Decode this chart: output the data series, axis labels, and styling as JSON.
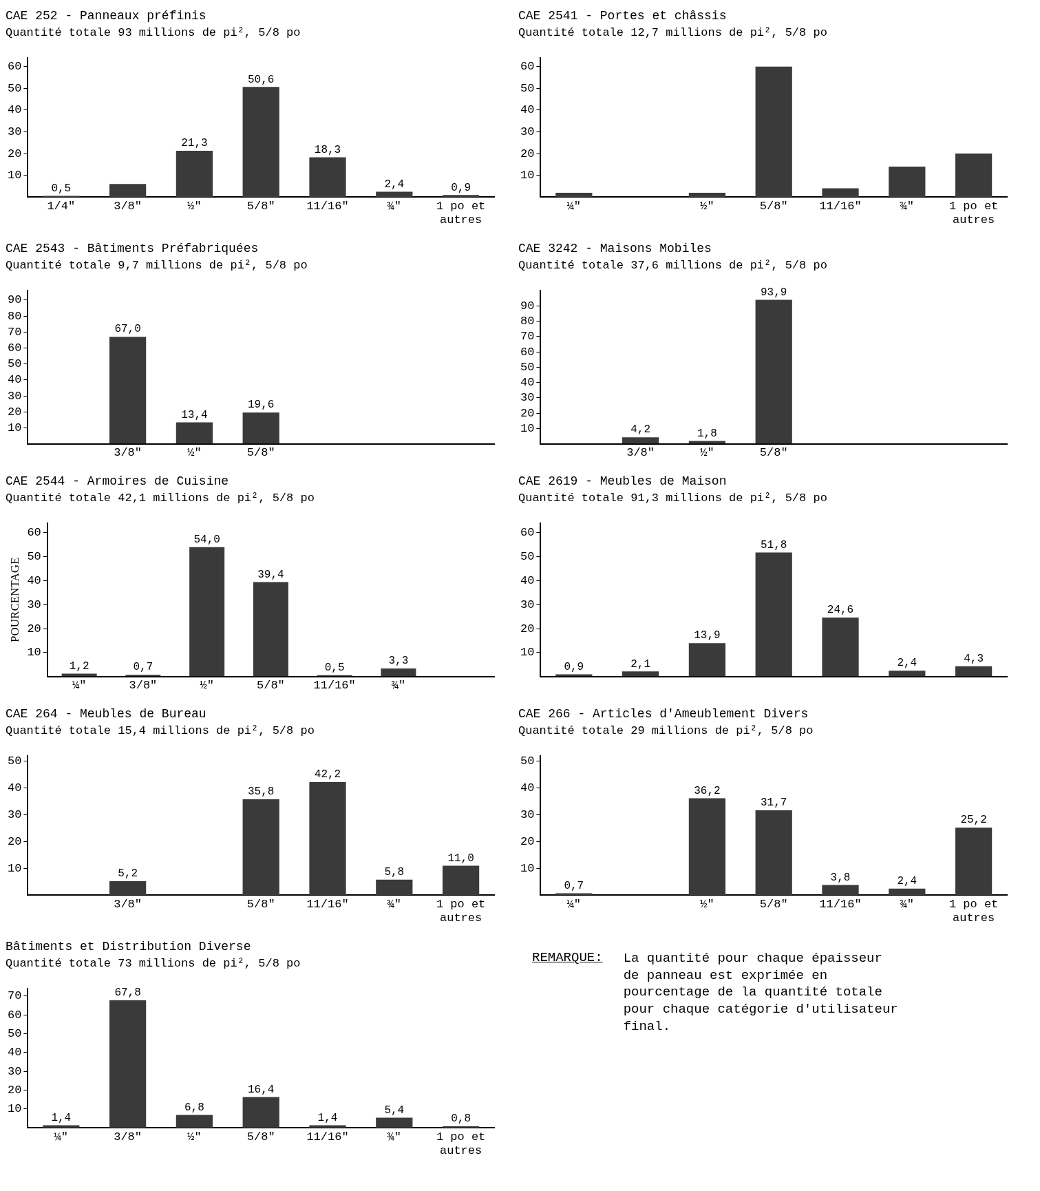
{
  "chart_data": [
    {
      "type": "bar",
      "title": "CAE 252 - Panneaux préfinis",
      "subtitle": "Quantité totale 93 millions de pi², 5/8 po",
      "categories": [
        "1/4\"",
        "3/8\"",
        "½\"",
        "5/8\"",
        "11/16\"",
        "¾\"",
        "1 po et autres"
      ],
      "values": [
        0.5,
        6,
        21.3,
        50.6,
        18.3,
        2.4,
        0.9
      ],
      "value_labels": [
        "0,5",
        null,
        "21,3",
        "50,6",
        "18,3",
        "2,4",
        "0,9"
      ],
      "color": "#3a3a3a",
      "ylim": [
        0,
        64
      ],
      "yticks": [
        10,
        20,
        30,
        40,
        50,
        60
      ],
      "grid": false,
      "legend": false
    },
    {
      "type": "bar",
      "title": "CAE 2541 - Portes et châssis",
      "subtitle": "Quantité totale 12,7 millions de pi², 5/8 po",
      "categories": [
        "¼\"",
        null,
        "½\"",
        "5/8\"",
        "11/16\"",
        "¾\"",
        "1 po et autres"
      ],
      "values": [
        2,
        null,
        2,
        60,
        4,
        14,
        20
      ],
      "color": "#3a3a3a",
      "ylim": [
        0,
        64
      ],
      "yticks": [
        10,
        20,
        30,
        40,
        50,
        60
      ],
      "grid": false,
      "legend": false
    },
    {
      "type": "bar",
      "title": "CAE 2543 - Bâtiments Préfabriquées",
      "subtitle": "Quantité totale 9,7 millions de pi², 5/8 po",
      "categories": [
        null,
        "3/8\"",
        "½\"",
        "5/8\"",
        null,
        null,
        null
      ],
      "values": [
        null,
        67.0,
        13.4,
        19.6,
        null,
        null,
        null
      ],
      "value_labels": [
        null,
        "67,0",
        "13,4",
        "19,6",
        null,
        null,
        null
      ],
      "color": "#3a3a3a",
      "ylim": [
        0,
        96
      ],
      "yticks": [
        10,
        20,
        30,
        40,
        50,
        60,
        70,
        80,
        90
      ],
      "grid": false,
      "legend": false
    },
    {
      "type": "bar",
      "title": "CAE 3242 - Maisons Mobiles",
      "subtitle": "Quantité totale 37,6 millions de pi², 5/8 po",
      "categories": [
        null,
        "3/8\"",
        "½\"",
        "5/8\"",
        null,
        null,
        null
      ],
      "values": [
        null,
        4.2,
        1.8,
        93.9,
        null,
        null,
        null
      ],
      "value_labels": [
        null,
        "4,2",
        "1,8",
        "93,9",
        null,
        null,
        null
      ],
      "color": "#3a3a3a",
      "ylim": [
        0,
        100
      ],
      "yticks": [
        10,
        20,
        30,
        40,
        50,
        60,
        70,
        80,
        90
      ],
      "grid": false,
      "legend": false
    },
    {
      "type": "bar",
      "title": "CAE 2544 - Armoires de Cuisine",
      "subtitle": "Quantité totale 42,1 millions de pi², 5/8 po",
      "ylabel": "POURCENTAGE",
      "categories": [
        "¼\"",
        "3/8\"",
        "½\"",
        "5/8\"",
        "11/16\"",
        "¾\"",
        null
      ],
      "values": [
        1.2,
        0.7,
        54.0,
        39.4,
        0.5,
        3.3,
        null
      ],
      "value_labels": [
        "1,2",
        "0,7",
        "54,0",
        "39,4",
        "0,5",
        "3,3",
        null
      ],
      "color": "#3a3a3a",
      "ylim": [
        0,
        64
      ],
      "yticks": [
        10,
        20,
        30,
        40,
        50,
        60
      ],
      "grid": false,
      "legend": false
    },
    {
      "type": "bar",
      "title": "CAE 2619 - Meubles de Maison",
      "subtitle": "Quantité totale 91,3 millions de pi², 5/8 po",
      "categories": [
        null,
        null,
        null,
        null,
        null,
        null,
        null
      ],
      "values": [
        0.9,
        2.1,
        13.9,
        51.8,
        24.6,
        2.4,
        4.3
      ],
      "value_labels": [
        "0,9",
        "2,1",
        "13,9",
        "51,8",
        "24,6",
        "2,4",
        "4,3"
      ],
      "color": "#3a3a3a",
      "ylim": [
        0,
        64
      ],
      "yticks": [
        10,
        20,
        30,
        40,
        50,
        60
      ],
      "grid": false,
      "legend": false
    },
    {
      "type": "bar",
      "title": "CAE 264 - Meubles de Bureau",
      "subtitle": "Quantité totale 15,4 millions de pi², 5/8 po",
      "categories": [
        null,
        "3/8\"",
        null,
        "5/8\"",
        "11/16\"",
        "¾\"",
        "1 po et autres"
      ],
      "values": [
        null,
        5.2,
        null,
        35.8,
        42.2,
        5.8,
        11.0
      ],
      "value_labels": [
        null,
        "5,2",
        null,
        "35,8",
        "42,2",
        "5,8",
        "11,0"
      ],
      "color": "#3a3a3a",
      "ylim": [
        0,
        52
      ],
      "yticks": [
        10,
        20,
        30,
        40,
        50
      ],
      "grid": false,
      "legend": false
    },
    {
      "type": "bar",
      "title": "CAE 266 - Articles d'Ameublement Divers",
      "subtitle": "Quantité totale 29 millions de pi², 5/8 po",
      "categories": [
        "¼\"",
        null,
        "½\"",
        "5/8\"",
        "11/16\"",
        "¾\"",
        "1 po et autres"
      ],
      "values": [
        0.7,
        null,
        36.2,
        31.7,
        3.8,
        2.4,
        25.2
      ],
      "value_labels": [
        "0,7",
        null,
        "36,2",
        "31,7",
        "3,8",
        "2,4",
        "25,2"
      ],
      "color": "#3a3a3a",
      "ylim": [
        0,
        52
      ],
      "yticks": [
        10,
        20,
        30,
        40,
        50
      ],
      "grid": false,
      "legend": false
    },
    {
      "type": "bar",
      "title": "Bâtiments et Distribution Diverse",
      "subtitle": "Quantité totale 73 millions de pi², 5/8 po",
      "categories": [
        "¼\"",
        "3/8\"",
        "½\"",
        "5/8\"",
        "11/16\"",
        "¾\"",
        "1 po et autres"
      ],
      "values": [
        1.4,
        67.8,
        6.8,
        16.4,
        1.4,
        5.4,
        0.8
      ],
      "value_labels": [
        "1,4",
        "67,8",
        "6,8",
        "16,4",
        "1,4",
        "5,4",
        "0,8"
      ],
      "color": "#3a3a3a",
      "ylim": [
        0,
        74
      ],
      "yticks": [
        10,
        20,
        30,
        40,
        50,
        60,
        70
      ],
      "grid": false,
      "legend": false
    },
    {
      "type": "other",
      "title": "REMARQUE:",
      "annotations": [
        "La quantité pour chaque épaisseur de panneau est exprimée en pourcentage de la quantité totale pour chaque catégorie d'utilisateur final."
      ]
    }
  ]
}
